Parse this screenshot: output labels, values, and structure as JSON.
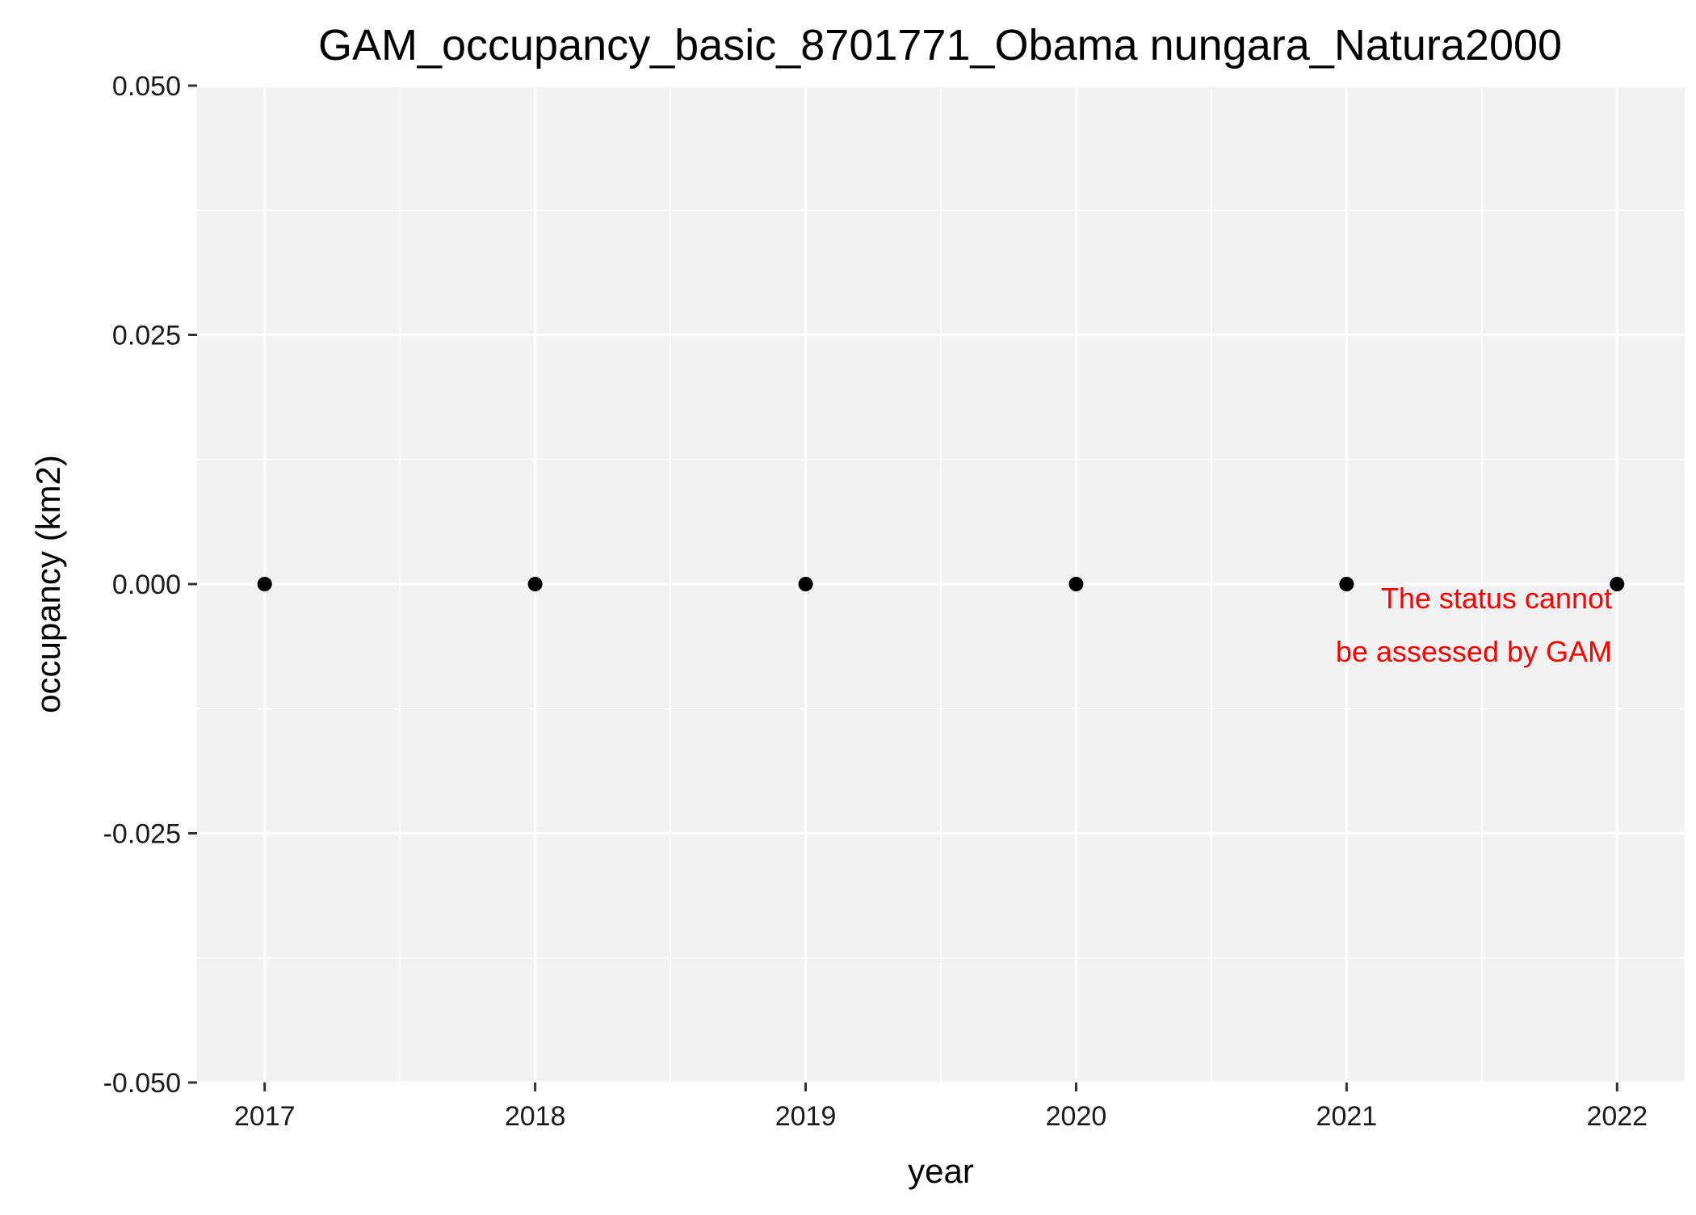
{
  "chart_data": {
    "type": "scatter",
    "title": "GAM_occupancy_basic_8701771_Obama nungara_Natura2000",
    "xlabel": "year",
    "ylabel": "occupancy (km2)",
    "x": [
      2017,
      2018,
      2019,
      2020,
      2021,
      2022
    ],
    "y": [
      0,
      0,
      0,
      0,
      0,
      0
    ],
    "xlim": [
      2016.75,
      2022.25
    ],
    "ylim": [
      -0.05,
      0.05
    ],
    "x_ticks": [
      "2017",
      "2018",
      "2019",
      "2020",
      "2021",
      "2022"
    ],
    "y_ticks": [
      "0.050",
      "0.025",
      "0.000",
      "-0.025",
      "-0.050"
    ],
    "grid": true,
    "annotation": {
      "lines": [
        "The status cannot",
        "be assessed by GAM"
      ],
      "color": "#ff0000"
    },
    "colors": {
      "panel_background": "#f2f2f2",
      "grid": "#ffffff",
      "points": "#000000"
    }
  }
}
